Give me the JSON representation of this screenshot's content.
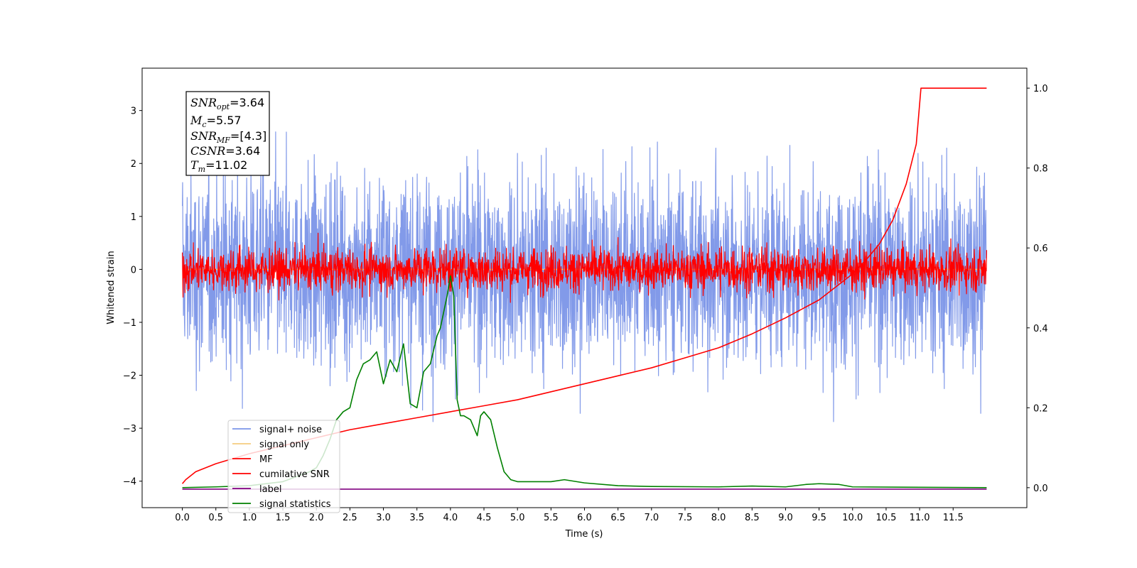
{
  "chart_data": {
    "type": "line",
    "title": "",
    "xlabel": "Time (s)",
    "ylabel": "Whitened strain",
    "xlim": [
      -0.6,
      12.6
    ],
    "ylim": [
      -4.5,
      3.8
    ],
    "y2lim": [
      -0.05,
      1.05
    ],
    "x_ticks": [
      "0.0",
      "0.5",
      "1.0",
      "1.5",
      "2.0",
      "2.5",
      "3.0",
      "3.5",
      "4.0",
      "4.5",
      "5.0",
      "5.5",
      "6.0",
      "6.5",
      "7.0",
      "7.5",
      "8.0",
      "8.5",
      "9.0",
      "9.5",
      "10.0",
      "10.5",
      "11.0",
      "11.5"
    ],
    "y_ticks": [
      "3",
      "2",
      "1",
      "0",
      "−1",
      "−2",
      "−3",
      "−4"
    ],
    "y2_ticks": [
      "1.0",
      "0.8",
      "0.6",
      "0.4",
      "0.2",
      "0.0"
    ],
    "grid": false,
    "legend_position": "lower-left",
    "annotation": {
      "snr_opt": "=3.64",
      "mc": "=5.57",
      "snr_mf": "=[4.3]",
      "csnr": "=3.64",
      "tm": "=11.02"
    },
    "series": [
      {
        "name": "signal+ noise",
        "color": "#7b95e8",
        "axis": "left",
        "noise_std": 0.9,
        "x_range": [
          0.0,
          12.0
        ]
      },
      {
        "name": "signal only",
        "color": "#f5cc7f",
        "axis": "left",
        "x_range": [
          0.0,
          12.0
        ]
      },
      {
        "name": "MF",
        "color": "#ff0000",
        "axis": "left",
        "noise_std": 0.2,
        "x_range": [
          0.0,
          12.0
        ]
      },
      {
        "name": "cumilative SNR",
        "color": "#ff0000",
        "axis": "right",
        "x": [
          0.0,
          0.05,
          0.2,
          0.5,
          1.0,
          1.5,
          2.0,
          2.5,
          3.0,
          3.5,
          4.0,
          4.5,
          5.0,
          5.5,
          6.0,
          6.5,
          7.0,
          7.5,
          8.0,
          8.5,
          9.0,
          9.5,
          10.0,
          10.2,
          10.4,
          10.6,
          10.8,
          10.95,
          11.02,
          12.0
        ],
        "y": [
          0.01,
          0.02,
          0.04,
          0.06,
          0.085,
          0.105,
          0.125,
          0.145,
          0.16,
          0.175,
          0.19,
          0.205,
          0.22,
          0.24,
          0.26,
          0.28,
          0.3,
          0.325,
          0.35,
          0.385,
          0.425,
          0.47,
          0.535,
          0.57,
          0.61,
          0.67,
          0.76,
          0.86,
          1.0,
          1.0
        ]
      },
      {
        "name": "label",
        "color": "#800080",
        "axis": "left",
        "x": [
          0.0,
          12.0
        ],
        "y": [
          -4.15,
          -4.15
        ]
      },
      {
        "name": "signal statistics",
        "color": "#008000",
        "axis": "right",
        "x": [
          0.0,
          0.5,
          1.0,
          1.5,
          1.9,
          2.0,
          2.1,
          2.2,
          2.3,
          2.4,
          2.5,
          2.6,
          2.7,
          2.8,
          2.9,
          3.0,
          3.1,
          3.2,
          3.3,
          3.4,
          3.5,
          3.6,
          3.7,
          3.8,
          3.85,
          3.9,
          3.95,
          4.0,
          4.05,
          4.1,
          4.15,
          4.2,
          4.3,
          4.4,
          4.45,
          4.5,
          4.6,
          4.7,
          4.8,
          4.9,
          5.0,
          5.2,
          5.5,
          5.7,
          6.0,
          6.5,
          7.0,
          8.0,
          8.5,
          9.0,
          9.3,
          9.5,
          9.8,
          10.0,
          11.0,
          12.0
        ],
        "y": [
          0.0,
          0.002,
          0.005,
          0.015,
          0.04,
          0.05,
          0.08,
          0.12,
          0.17,
          0.19,
          0.2,
          0.27,
          0.31,
          0.32,
          0.34,
          0.26,
          0.32,
          0.29,
          0.36,
          0.21,
          0.2,
          0.29,
          0.31,
          0.38,
          0.4,
          0.44,
          0.48,
          0.53,
          0.48,
          0.22,
          0.18,
          0.18,
          0.17,
          0.13,
          0.18,
          0.19,
          0.17,
          0.1,
          0.04,
          0.02,
          0.015,
          0.015,
          0.015,
          0.02,
          0.012,
          0.005,
          0.003,
          0.002,
          0.004,
          0.002,
          0.008,
          0.01,
          0.008,
          0.002,
          0.001,
          0.0
        ]
      }
    ]
  }
}
